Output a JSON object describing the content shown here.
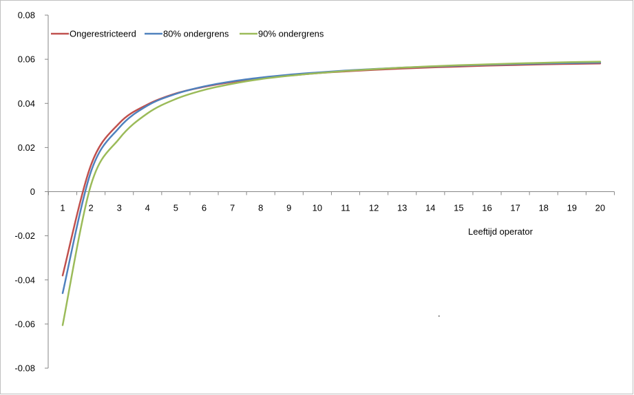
{
  "chart_data": {
    "type": "line",
    "title": "",
    "xlabel": "Leeftijd operator",
    "ylabel": "",
    "x": [
      1,
      2,
      3,
      4,
      5,
      6,
      7,
      8,
      9,
      10,
      11,
      12,
      13,
      14,
      15,
      16,
      17,
      18,
      19,
      20
    ],
    "x_tick_labels": [
      "1",
      "2",
      "3",
      "4",
      "5",
      "6",
      "7",
      "8",
      "9",
      "10",
      "11",
      "12",
      "13",
      "14",
      "15",
      "16",
      "17",
      "18",
      "19",
      "20"
    ],
    "ylim": [
      -0.08,
      0.08
    ],
    "y_ticks": [
      -0.08,
      -0.06,
      -0.04,
      -0.02,
      0,
      0.02,
      0.04,
      0.06,
      0.08
    ],
    "y_tick_labels": [
      "-0.08",
      "-0.06",
      "-0.04",
      "-0.02",
      "0",
      "0.02",
      "0.04",
      "0.06",
      "0.08"
    ],
    "grid": false,
    "legend_position": "top-left",
    "series": [
      {
        "name": "Ongerestricteerd",
        "color": "#c0504d",
        "values": [
          -0.038,
          0.012,
          0.031,
          0.0395,
          0.0445,
          0.0475,
          0.0497,
          0.0513,
          0.0526,
          0.0537,
          0.0545,
          0.0552,
          0.0558,
          0.0563,
          0.0567,
          0.0571,
          0.0574,
          0.0577,
          0.0579,
          0.0581
        ]
      },
      {
        "name": "80% ondergrens",
        "color": "#4f81bd",
        "values": [
          -0.046,
          0.009,
          0.029,
          0.039,
          0.0443,
          0.0477,
          0.05,
          0.0517,
          0.053,
          0.054,
          0.0549,
          0.0556,
          0.0562,
          0.0567,
          0.0571,
          0.0575,
          0.0578,
          0.0581,
          0.0583,
          0.0585
        ]
      },
      {
        "name": "90% ondergrens",
        "color": "#9bbb59",
        "values": [
          -0.0605,
          0.003,
          0.024,
          0.0355,
          0.042,
          0.0461,
          0.0489,
          0.051,
          0.0525,
          0.0537,
          0.0547,
          0.0555,
          0.0562,
          0.0568,
          0.0573,
          0.0577,
          0.0581,
          0.0584,
          0.0587,
          0.0589
        ]
      }
    ]
  }
}
